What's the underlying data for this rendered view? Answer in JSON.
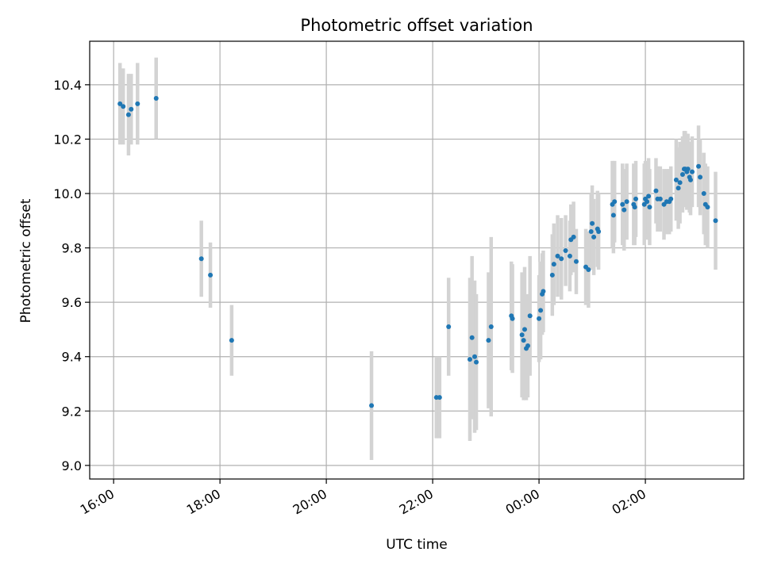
{
  "chart_data": {
    "type": "scatter",
    "title": "Photometric offset variation",
    "xlabel": "UTC time",
    "ylabel": "Photometric offset",
    "x_unit": "hours",
    "x_ticks": [
      {
        "value": 16,
        "label": "16:00"
      },
      {
        "value": 18,
        "label": "18:00"
      },
      {
        "value": 20,
        "label": "20:00"
      },
      {
        "value": 22,
        "label": "22:00"
      },
      {
        "value": 24,
        "label": "00:00"
      },
      {
        "value": 26,
        "label": "02:00"
      }
    ],
    "y_ticks": [
      {
        "value": 9.0,
        "label": "9.0"
      },
      {
        "value": 9.2,
        "label": "9.2"
      },
      {
        "value": 9.4,
        "label": "9.4"
      },
      {
        "value": 9.6,
        "label": "9.6"
      },
      {
        "value": 9.8,
        "label": "9.8"
      },
      {
        "value": 10.0,
        "label": "10.0"
      },
      {
        "value": 10.2,
        "label": "10.2"
      },
      {
        "value": 10.4,
        "label": "10.4"
      }
    ],
    "xlim": [
      15.55,
      27.85
    ],
    "ylim": [
      8.95,
      10.56
    ],
    "grid": true,
    "series": [
      {
        "color": "#1f77b4",
        "errorbar_color": "#d3d3d3",
        "points": [
          [
            16.12,
            10.33,
            0.15
          ],
          [
            16.18,
            10.32,
            0.14
          ],
          [
            16.28,
            10.29,
            0.15
          ],
          [
            16.33,
            10.31,
            0.13
          ],
          [
            16.45,
            10.33,
            0.15
          ],
          [
            16.8,
            10.35,
            0.15
          ],
          [
            17.65,
            9.76,
            0.14
          ],
          [
            17.82,
            9.7,
            0.12
          ],
          [
            18.22,
            9.46,
            0.13
          ],
          [
            20.85,
            9.22,
            0.2
          ],
          [
            22.07,
            9.25,
            0.15
          ],
          [
            22.13,
            9.25,
            0.15
          ],
          [
            22.3,
            9.51,
            0.18
          ],
          [
            22.7,
            9.39,
            0.3
          ],
          [
            22.74,
            9.47,
            0.3
          ],
          [
            22.79,
            9.4,
            0.28
          ],
          [
            22.82,
            9.38,
            0.25
          ],
          [
            23.05,
            9.46,
            0.25
          ],
          [
            23.1,
            9.51,
            0.33
          ],
          [
            23.48,
            9.55,
            0.2
          ],
          [
            23.5,
            9.54,
            0.2
          ],
          [
            23.68,
            9.48,
            0.23
          ],
          [
            23.71,
            9.46,
            0.22
          ],
          [
            23.73,
            9.5,
            0.23
          ],
          [
            23.76,
            9.43,
            0.19
          ],
          [
            23.79,
            9.44,
            0.19
          ],
          [
            23.83,
            9.55,
            0.22
          ],
          [
            24.0,
            9.54,
            0.16
          ],
          [
            24.03,
            9.57,
            0.18
          ],
          [
            24.06,
            9.63,
            0.15
          ],
          [
            24.08,
            9.64,
            0.15
          ],
          [
            24.25,
            9.7,
            0.15
          ],
          [
            24.28,
            9.74,
            0.15
          ],
          [
            24.35,
            9.77,
            0.15
          ],
          [
            24.42,
            9.76,
            0.15
          ],
          [
            24.5,
            9.79,
            0.13
          ],
          [
            24.58,
            9.77,
            0.13
          ],
          [
            24.6,
            9.83,
            0.13
          ],
          [
            24.65,
            9.84,
            0.13
          ],
          [
            24.7,
            9.75,
            0.12
          ],
          [
            24.88,
            9.73,
            0.14
          ],
          [
            24.93,
            9.72,
            0.14
          ],
          [
            24.98,
            9.86,
            0.14
          ],
          [
            25.0,
            9.89,
            0.14
          ],
          [
            25.03,
            9.84,
            0.14
          ],
          [
            25.1,
            9.87,
            0.14
          ],
          [
            25.12,
            9.86,
            0.14
          ],
          [
            25.38,
            9.96,
            0.16
          ],
          [
            25.4,
            9.92,
            0.14
          ],
          [
            25.42,
            9.97,
            0.15
          ],
          [
            25.57,
            9.96,
            0.15
          ],
          [
            25.6,
            9.94,
            0.15
          ],
          [
            25.65,
            9.97,
            0.14
          ],
          [
            25.78,
            9.96,
            0.15
          ],
          [
            25.8,
            9.95,
            0.14
          ],
          [
            25.82,
            9.98,
            0.14
          ],
          [
            25.98,
            9.96,
            0.15
          ],
          [
            26.0,
            9.98,
            0.14
          ],
          [
            26.03,
            9.97,
            0.14
          ],
          [
            26.06,
            9.99,
            0.14
          ],
          [
            26.08,
            9.95,
            0.14
          ],
          [
            26.2,
            10.01,
            0.12
          ],
          [
            26.23,
            9.98,
            0.12
          ],
          [
            26.28,
            9.98,
            0.12
          ],
          [
            26.35,
            9.96,
            0.13
          ],
          [
            26.4,
            9.97,
            0.12
          ],
          [
            26.45,
            9.97,
            0.12
          ],
          [
            26.48,
            9.98,
            0.12
          ],
          [
            26.58,
            10.05,
            0.15
          ],
          [
            26.62,
            10.02,
            0.15
          ],
          [
            26.65,
            10.04,
            0.15
          ],
          [
            26.7,
            10.07,
            0.14
          ],
          [
            26.73,
            10.09,
            0.14
          ],
          [
            26.75,
            10.09,
            0.14
          ],
          [
            26.78,
            10.08,
            0.14
          ],
          [
            26.8,
            10.09,
            0.13
          ],
          [
            26.83,
            10.06,
            0.13
          ],
          [
            26.85,
            10.05,
            0.13
          ],
          [
            26.88,
            10.08,
            0.13
          ],
          [
            27.0,
            10.1,
            0.15
          ],
          [
            27.03,
            10.06,
            0.14
          ],
          [
            27.1,
            10.0,
            0.15
          ],
          [
            27.13,
            9.96,
            0.15
          ],
          [
            27.17,
            9.95,
            0.15
          ],
          [
            27.32,
            9.9,
            0.18
          ]
        ]
      }
    ]
  }
}
